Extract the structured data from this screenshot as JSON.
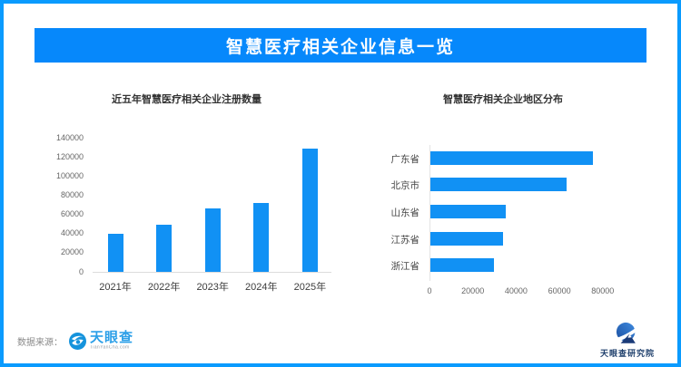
{
  "header": {
    "title": "智慧医疗相关企业信息一览",
    "banner_color": "#0688fb",
    "frame_color": "#0a9bfe"
  },
  "chart_data": [
    {
      "type": "bar",
      "title": "近五年智慧医疗相关企业注册数量",
      "categories": [
        "2021年",
        "2022年",
        "2023年",
        "2024年",
        "2025年"
      ],
      "values": [
        40000,
        49000,
        66000,
        72000,
        128500
      ],
      "xlabel": "",
      "ylabel": "",
      "ylim": [
        0,
        140000
      ],
      "ytick_step": 20000,
      "bar_color": "#1191f4",
      "grid": false,
      "legend": "none"
    },
    {
      "type": "bar",
      "orientation": "horizontal",
      "title": "智慧医疗相关企业地区分布",
      "categories": [
        "广东省",
        "北京市",
        "山东省",
        "江苏省",
        "浙江省"
      ],
      "values": [
        75000,
        63000,
        35000,
        33500,
        29500
      ],
      "xlabel": "",
      "ylabel": "",
      "xlim": [
        0,
        80000
      ],
      "xtick_step": 20000,
      "bar_color": "#1191f4",
      "grid": false,
      "legend": "none"
    }
  ],
  "footer": {
    "source_label": "数据来源：",
    "tianyancha_logo": {
      "text": "天眼查",
      "subtext": "TianYanCha.com",
      "icon": "eye-swirl-icon",
      "color": "#2b9fe8"
    },
    "research_logo": {
      "text": "天眼查研究院",
      "icon": "swoosh-roof-icon",
      "color": "#1d3e6b"
    }
  }
}
